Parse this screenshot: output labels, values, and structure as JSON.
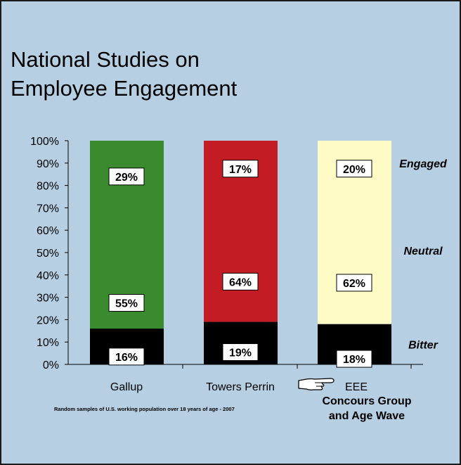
{
  "title": {
    "line1": "National Studies on",
    "line2": "Employee Engagement"
  },
  "footnote": "Random samples of U.S. working population over 18 years of age - 2007",
  "pointer_icon": "pointing-hand-icon",
  "chart_data": {
    "type": "bar",
    "stacked": true,
    "ylim": [
      0,
      100
    ],
    "y_ticks": [
      "0%",
      "10%",
      "20%",
      "30%",
      "40%",
      "50%",
      "60%",
      "70%",
      "80%",
      "90%",
      "100%"
    ],
    "categories": [
      {
        "label": "Gallup",
        "sub_labels": []
      },
      {
        "label": "Towers Perrin",
        "sub_labels": []
      },
      {
        "label": "EEE",
        "sub_labels": [
          "Concours Group",
          "and Age Wave"
        ]
      }
    ],
    "series": [
      {
        "name": "Bitter",
        "values": [
          16,
          19,
          18
        ],
        "labels": [
          "16%",
          "19%",
          "18%"
        ]
      },
      {
        "name": "Neutral",
        "values": [
          55,
          64,
          62
        ],
        "labels": [
          "55%",
          "64%",
          "62%"
        ]
      },
      {
        "name": "Engaged",
        "values": [
          29,
          17,
          20
        ],
        "labels": [
          "29%",
          "17%",
          "20%"
        ]
      }
    ],
    "colors": {
      "bitter": "#000000",
      "columns": [
        "#3a8b2d",
        "#c41c24",
        "#fffbc6"
      ]
    },
    "label_positions": [
      [
        3.5,
        27.5,
        84.0
      ],
      [
        5.5,
        37.0,
        87.5
      ],
      [
        2.5,
        36.5,
        87.5
      ]
    ],
    "legend_positions": {
      "Bitter": 9.0,
      "Neutral": 51.0,
      "Engaged": 90.0
    }
  }
}
